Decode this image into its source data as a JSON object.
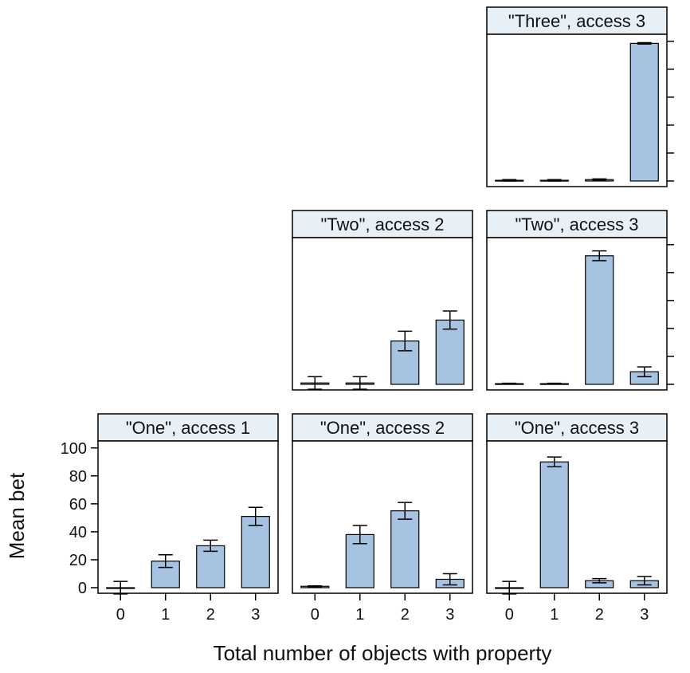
{
  "chart_data": {
    "type": "bar",
    "title": "",
    "xlabel": "Total number of objects with property",
    "ylabel": "Mean bet",
    "categories": [
      "0",
      "1",
      "2",
      "3"
    ],
    "ylim": [
      -4,
      105
    ],
    "yticks": [
      0,
      20,
      40,
      60,
      80,
      100
    ],
    "bar_color": "#a6c4e2",
    "strip_color": "#e8f0f7",
    "panels": [
      {
        "strip": "\"Three\", access 3",
        "row": 0,
        "col": 2,
        "values": [
          0.5,
          0.5,
          1.0,
          98.5
        ],
        "errors": [
          0.5,
          0.5,
          0.5,
          0.5
        ]
      },
      {
        "strip": "\"Two\", access 2",
        "row": 1,
        "col": 1,
        "values": [
          1.0,
          1.0,
          31.0,
          46.0
        ],
        "errors": [
          4.5,
          4.5,
          7.0,
          6.5
        ]
      },
      {
        "strip": "\"Two\", access 3",
        "row": 1,
        "col": 2,
        "values": [
          0.5,
          0.5,
          92.0,
          9.0
        ],
        "errors": [
          0.3,
          0.3,
          3.5,
          3.5
        ]
      },
      {
        "strip": "\"One\", access 1",
        "row": 2,
        "col": 0,
        "values": [
          0,
          19,
          30,
          51
        ],
        "errors": [
          4.5,
          4.5,
          4.0,
          6.5
        ]
      },
      {
        "strip": "\"One\", access 2",
        "row": 2,
        "col": 1,
        "values": [
          1,
          38,
          55,
          6
        ],
        "errors": [
          0.3,
          6.5,
          6.0,
          4.0
        ]
      },
      {
        "strip": "\"One\", access 3",
        "row": 2,
        "col": 2,
        "values": [
          0,
          90,
          5,
          5
        ],
        "errors": [
          4.5,
          3.5,
          1.5,
          3.0
        ]
      }
    ]
  }
}
